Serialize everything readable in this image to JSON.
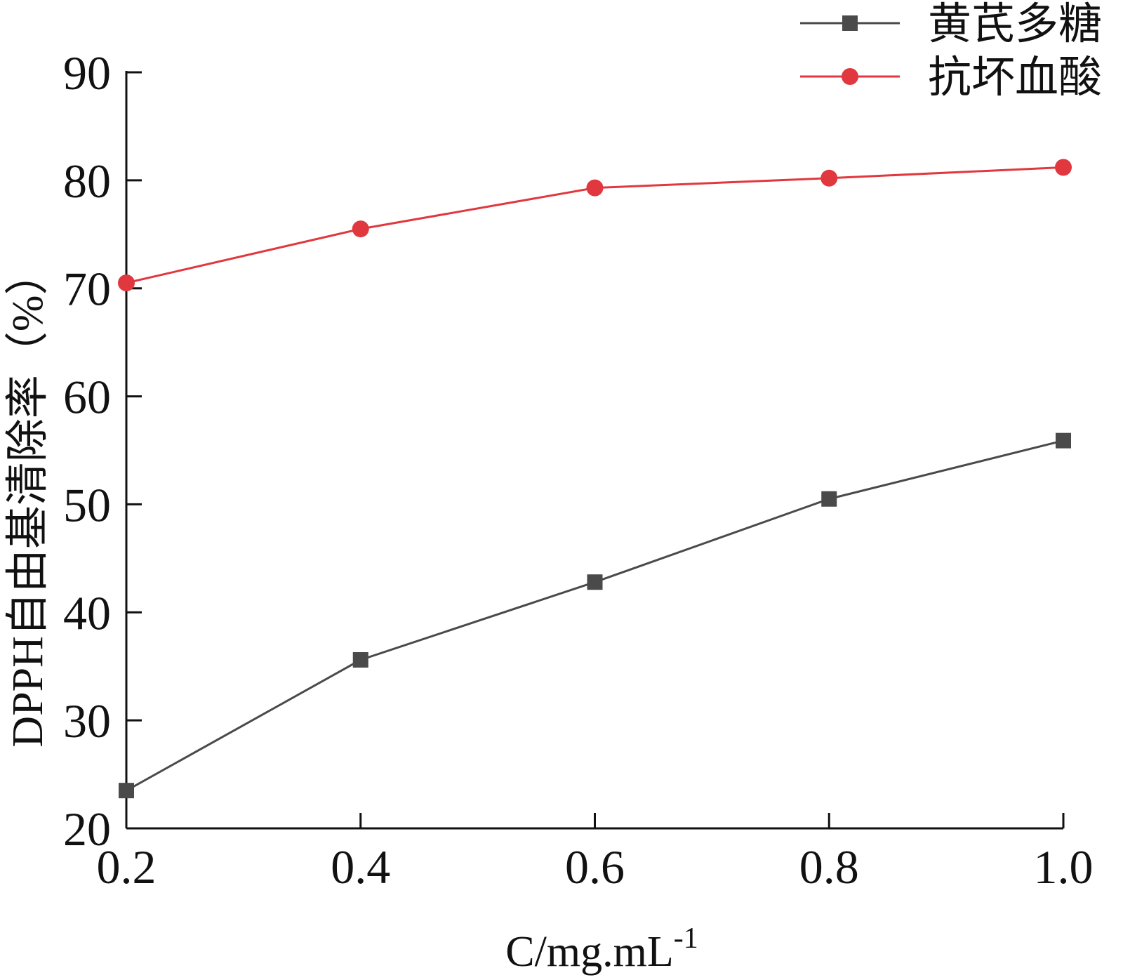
{
  "chart_data": {
    "type": "line",
    "xlabel": "C/mg.mL",
    "xlabel_sup": "-1",
    "ylabel": "DPPH自由基清除率（%）",
    "x": [
      0.2,
      0.4,
      0.6,
      0.8,
      1.0
    ],
    "xticks": [
      "0.2",
      "0.4",
      "0.6",
      "0.8",
      "1.0"
    ],
    "yticks": [
      "20",
      "30",
      "40",
      "50",
      "60",
      "70",
      "80",
      "90"
    ],
    "xlim": [
      0.2,
      1.0
    ],
    "ylim": [
      20,
      90
    ],
    "grid": false,
    "legend_position": "top-right",
    "series": [
      {
        "name": "黄芪多糖",
        "values": [
          23.5,
          35.6,
          42.8,
          50.5,
          55.9
        ],
        "color": "#4a4a4a",
        "marker": "square"
      },
      {
        "name": "抗坏血酸",
        "values": [
          70.5,
          75.5,
          79.3,
          80.2,
          81.2
        ],
        "color": "#e0383e",
        "marker": "circle"
      }
    ]
  }
}
